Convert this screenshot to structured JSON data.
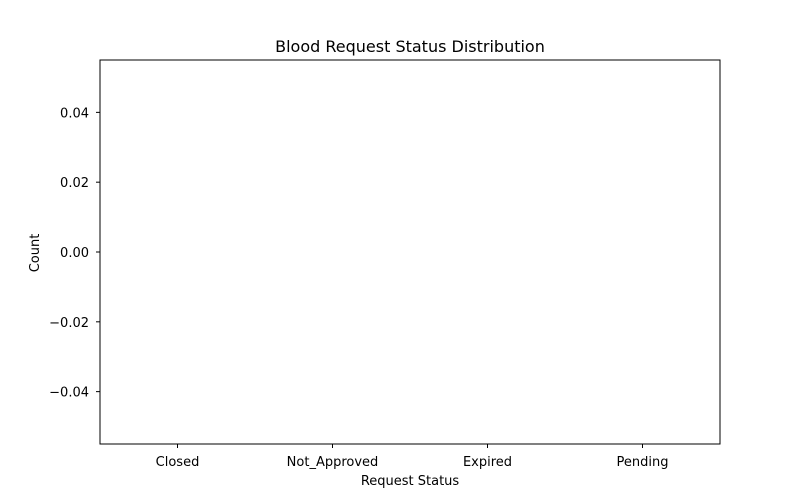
{
  "chart_data": {
    "type": "bar",
    "title": "Blood Request Status Distribution",
    "xlabel": "Request Status",
    "ylabel": "Count",
    "categories": [
      "Closed",
      "Not_Approved",
      "Expired",
      "Pending"
    ],
    "values": [
      0,
      0,
      0,
      0
    ],
    "ylim": [
      -0.055,
      0.055
    ],
    "yticks": [
      -0.04,
      -0.02,
      0.0,
      0.02,
      0.04
    ],
    "ytick_labels": [
      "−0.04",
      "−0.02",
      "0.00",
      "0.02",
      "0.04"
    ],
    "grid": false,
    "legend": "none"
  }
}
